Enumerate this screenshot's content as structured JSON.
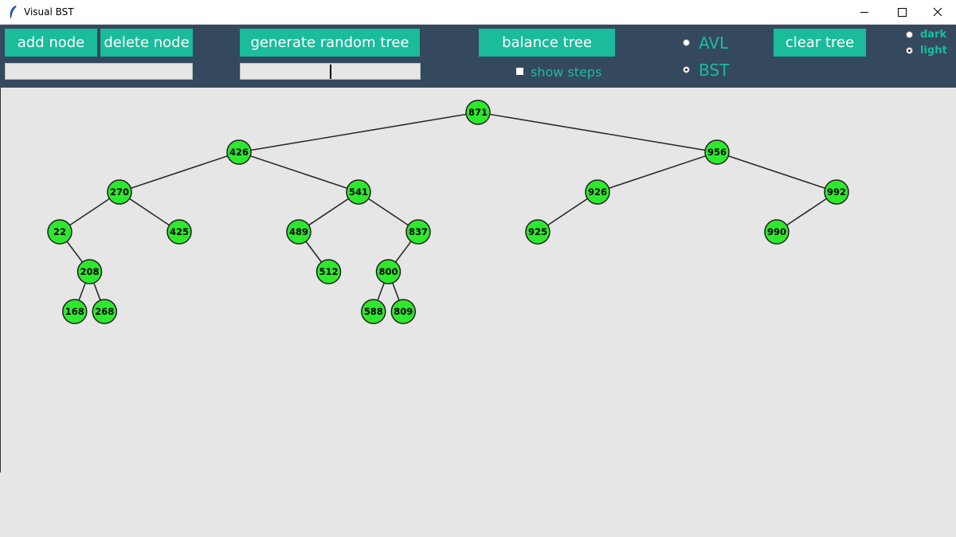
{
  "window": {
    "title": "Visual BST"
  },
  "toolbar": {
    "add_node_label": "add node",
    "delete_node_label": "delete node",
    "generate_label": "generate random tree",
    "balance_label": "balance tree",
    "clear_label": "clear tree",
    "node_input_value": "",
    "count_input_value": "",
    "show_steps_label": "show steps",
    "show_steps_checked": false,
    "avl_label": "AVL",
    "bst_label": "BST",
    "tree_mode_selected": "BST",
    "dark_label": "dark",
    "light_label": "light",
    "theme_selected": "light"
  },
  "colors": {
    "toolbar_bg": "#34495e",
    "button_bg": "#1abc9c",
    "accent_text": "#1abc9c",
    "node_fill": "#2ee82e",
    "canvas_bg": "#e6e6e6"
  },
  "tree": {
    "root": 871,
    "edges": [
      [
        871,
        426
      ],
      [
        871,
        956
      ],
      [
        426,
        270
      ],
      [
        426,
        541
      ],
      [
        956,
        926
      ],
      [
        956,
        992
      ],
      [
        270,
        22
      ],
      [
        270,
        425
      ],
      [
        541,
        489
      ],
      [
        541,
        837
      ],
      [
        926,
        925
      ],
      [
        992,
        990
      ],
      [
        22,
        208
      ],
      [
        489,
        512
      ],
      [
        837,
        800
      ],
      [
        208,
        168
      ],
      [
        208,
        268
      ],
      [
        800,
        588
      ],
      [
        800,
        809
      ]
    ]
  }
}
